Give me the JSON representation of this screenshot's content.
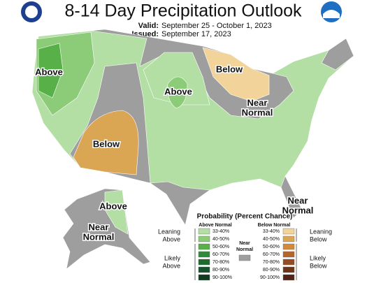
{
  "header": {
    "title": "8-14 Day Precipitation Outlook",
    "valid_label": "Valid:",
    "valid": "September 25 - October 1, 2023",
    "issued_label": "Issued:",
    "issued": "September 17, 2023"
  },
  "map_labels": [
    {
      "lines": [
        "Above"
      ]
    },
    {
      "lines": [
        "Above"
      ]
    },
    {
      "lines": [
        "Below"
      ]
    },
    {
      "lines": [
        "Below"
      ]
    },
    {
      "lines": [
        "Near",
        "Normal"
      ]
    },
    {
      "lines": [
        "Near",
        "Normal"
      ]
    },
    {
      "lines": [
        "Above"
      ]
    },
    {
      "lines": [
        "Near",
        "Normal"
      ]
    }
  ],
  "legend": {
    "title": "Probability (Percent Chance)",
    "above_header": "Above Normal",
    "below_header": "Below Normal",
    "near_label": [
      "Near",
      "Normal"
    ],
    "near_color": "#9e9e9e",
    "ranges": [
      "33-40%",
      "40-50%",
      "50-60%",
      "60-70%",
      "70-80%",
      "80-90%",
      "90-100%"
    ],
    "above_colors": [
      "#b3dfa5",
      "#8ccb78",
      "#58b048",
      "#2f8b3a",
      "#1f6b2e",
      "#16522a",
      "#0f3b1f"
    ],
    "below_colors": [
      "#f2d49a",
      "#dba654",
      "#d1893a",
      "#b5652c",
      "#944c24",
      "#6f3519",
      "#512515"
    ],
    "groups": [
      [
        "Leaning",
        "Above"
      ],
      [
        "Likely",
        "Above"
      ],
      [
        "Leaning",
        "Below"
      ],
      [
        "Likely",
        "Below"
      ]
    ]
  }
}
